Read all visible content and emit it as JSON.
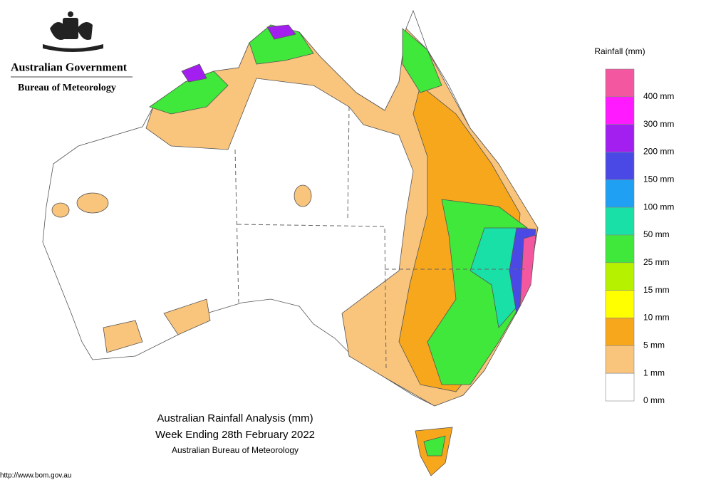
{
  "header": {
    "title": "Australian Government",
    "subtitle": "Bureau of Meteorology"
  },
  "map": {
    "title": "Australian Rainfall Analysis (mm)",
    "subtitle": "Week Ending 28th February 2022",
    "source": "Australian Bureau of Meteorology",
    "url": "http://www.bom.gov.au"
  },
  "legend": {
    "title": "Rainfall (mm)",
    "colors": [
      "#f2579f",
      "#ff1aff",
      "#a21ff0",
      "#4a49e6",
      "#1fa0f2",
      "#19e0a6",
      "#3fe83a",
      "#b6f200",
      "#ffff00",
      "#f7a71b",
      "#f9c47c",
      "#ffffff"
    ],
    "labels": [
      "400 mm",
      "300 mm",
      "200 mm",
      "150 mm",
      "100 mm",
      "50 mm",
      "25 mm",
      "15 mm",
      "10 mm",
      "5 mm",
      "1 mm",
      "0 mm"
    ]
  }
}
